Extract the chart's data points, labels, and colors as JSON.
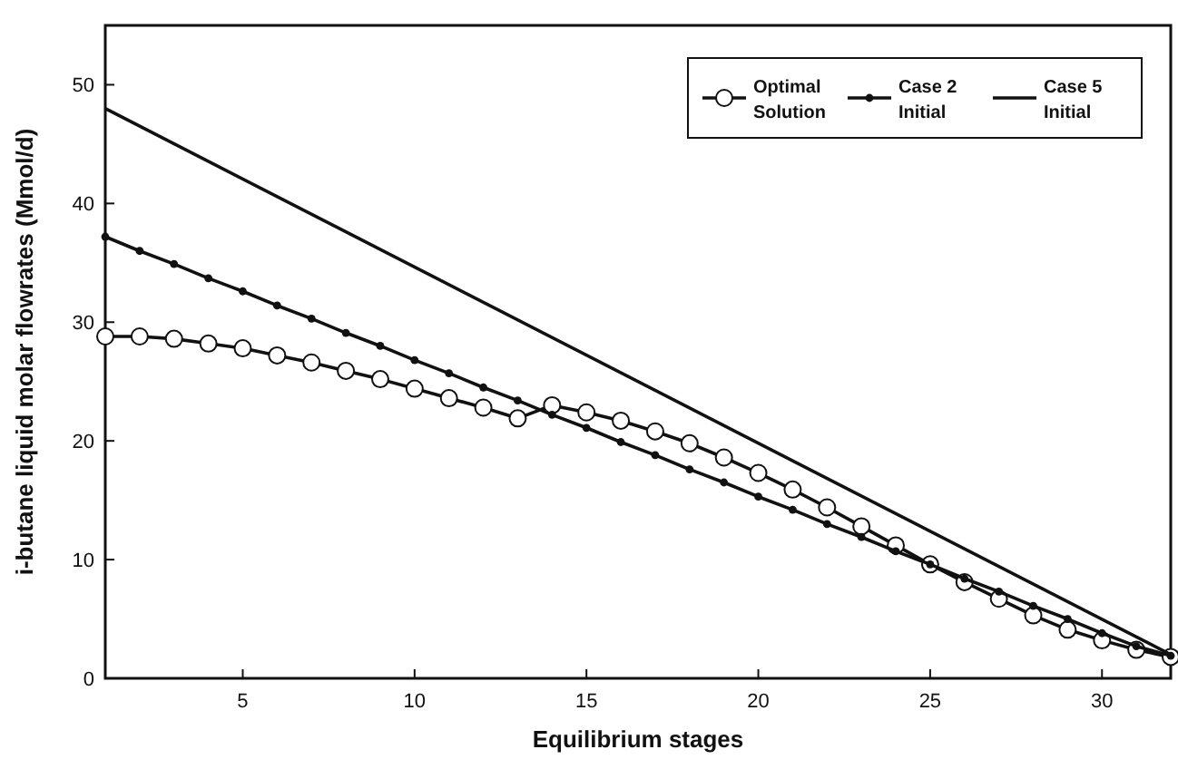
{
  "chart_data": {
    "type": "line",
    "xlabel": "Equilibrium stages",
    "ylabel": "i-butane liquid molar flowrates (Mmol/d)",
    "xlim": [
      1,
      32
    ],
    "ylim": [
      0,
      55
    ],
    "xticks": [
      5,
      10,
      15,
      20,
      25,
      30
    ],
    "yticks": [
      0,
      10,
      20,
      30,
      40,
      50
    ],
    "legend": "top right",
    "grid": false,
    "series": [
      {
        "name": "Optimal Solution",
        "color": "#111111",
        "marker": "circle",
        "x": [
          1,
          2,
          3,
          4,
          5,
          6,
          7,
          8,
          9,
          10,
          11,
          12,
          13,
          14,
          15,
          16,
          17,
          18,
          19,
          20,
          21,
          22,
          23,
          24,
          25,
          26,
          27,
          28,
          29,
          30,
          31,
          32
        ],
        "values": [
          28.8,
          28.8,
          28.6,
          28.2,
          27.8,
          27.2,
          26.6,
          25.9,
          25.2,
          24.4,
          23.6,
          22.8,
          21.9,
          23.0,
          22.4,
          21.7,
          20.8,
          19.8,
          18.6,
          17.3,
          15.9,
          14.4,
          12.8,
          11.2,
          9.6,
          8.1,
          6.7,
          5.3,
          4.1,
          3.2,
          2.4,
          1.8
        ]
      },
      {
        "name": "Case 2 Initial",
        "color": "#111111",
        "marker": "dot",
        "x": [
          1,
          2,
          3,
          4,
          5,
          6,
          7,
          8,
          9,
          10,
          11,
          12,
          13,
          14,
          15,
          16,
          17,
          18,
          19,
          20,
          21,
          22,
          23,
          24,
          25,
          26,
          27,
          28,
          29,
          30,
          31,
          32
        ],
        "values": [
          37.2,
          36.0,
          34.9,
          33.7,
          32.6,
          31.4,
          30.3,
          29.1,
          28.0,
          26.8,
          25.7,
          24.5,
          23.4,
          22.2,
          21.1,
          19.9,
          18.8,
          17.6,
          16.5,
          15.3,
          14.2,
          13.0,
          11.9,
          10.7,
          9.6,
          8.4,
          7.3,
          6.1,
          5.0,
          3.8,
          2.7,
          1.9
        ]
      },
      {
        "name": "Case 5 Initial",
        "color": "#111111",
        "marker": "none",
        "x": [
          1,
          32
        ],
        "values": [
          48,
          2
        ]
      }
    ]
  }
}
